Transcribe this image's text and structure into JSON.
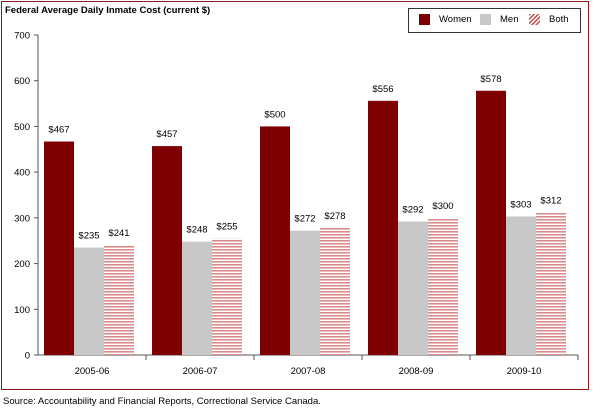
{
  "title": "Federal Average Daily Inmate Cost  (current $)",
  "source": "Source: Accountability and Financial Reports, Correctional Service Canada.",
  "colors": {
    "women": "#7f0000",
    "men": "#c8c8c8",
    "both_stripe": "#d98c8c",
    "frame": "#8b1a1a"
  },
  "chart_data": {
    "type": "bar",
    "title": "Federal Average Daily Inmate Cost  (current $)",
    "categories": [
      "2005-06",
      "2006-07",
      "2007-08",
      "2008-09",
      "2009-10"
    ],
    "series": [
      {
        "name": "Women",
        "values": [
          467,
          457,
          500,
          556,
          578
        ],
        "labels": [
          "$467",
          "$457",
          "$500",
          "$556",
          "$578"
        ]
      },
      {
        "name": "Men",
        "values": [
          235,
          248,
          272,
          292,
          303
        ],
        "labels": [
          "$235",
          "$248",
          "$272",
          "$292",
          "$303"
        ]
      },
      {
        "name": "Both",
        "values": [
          241,
          255,
          278,
          300,
          312
        ],
        "labels": [
          "$241",
          "$255",
          "$278",
          "$300",
          "$312"
        ]
      }
    ],
    "ylim": [
      0,
      700
    ],
    "yticks": [
      "0",
      "100",
      "200",
      "300",
      "400",
      "500",
      "600",
      "700"
    ],
    "grid": false,
    "legend_position": "top-right"
  }
}
